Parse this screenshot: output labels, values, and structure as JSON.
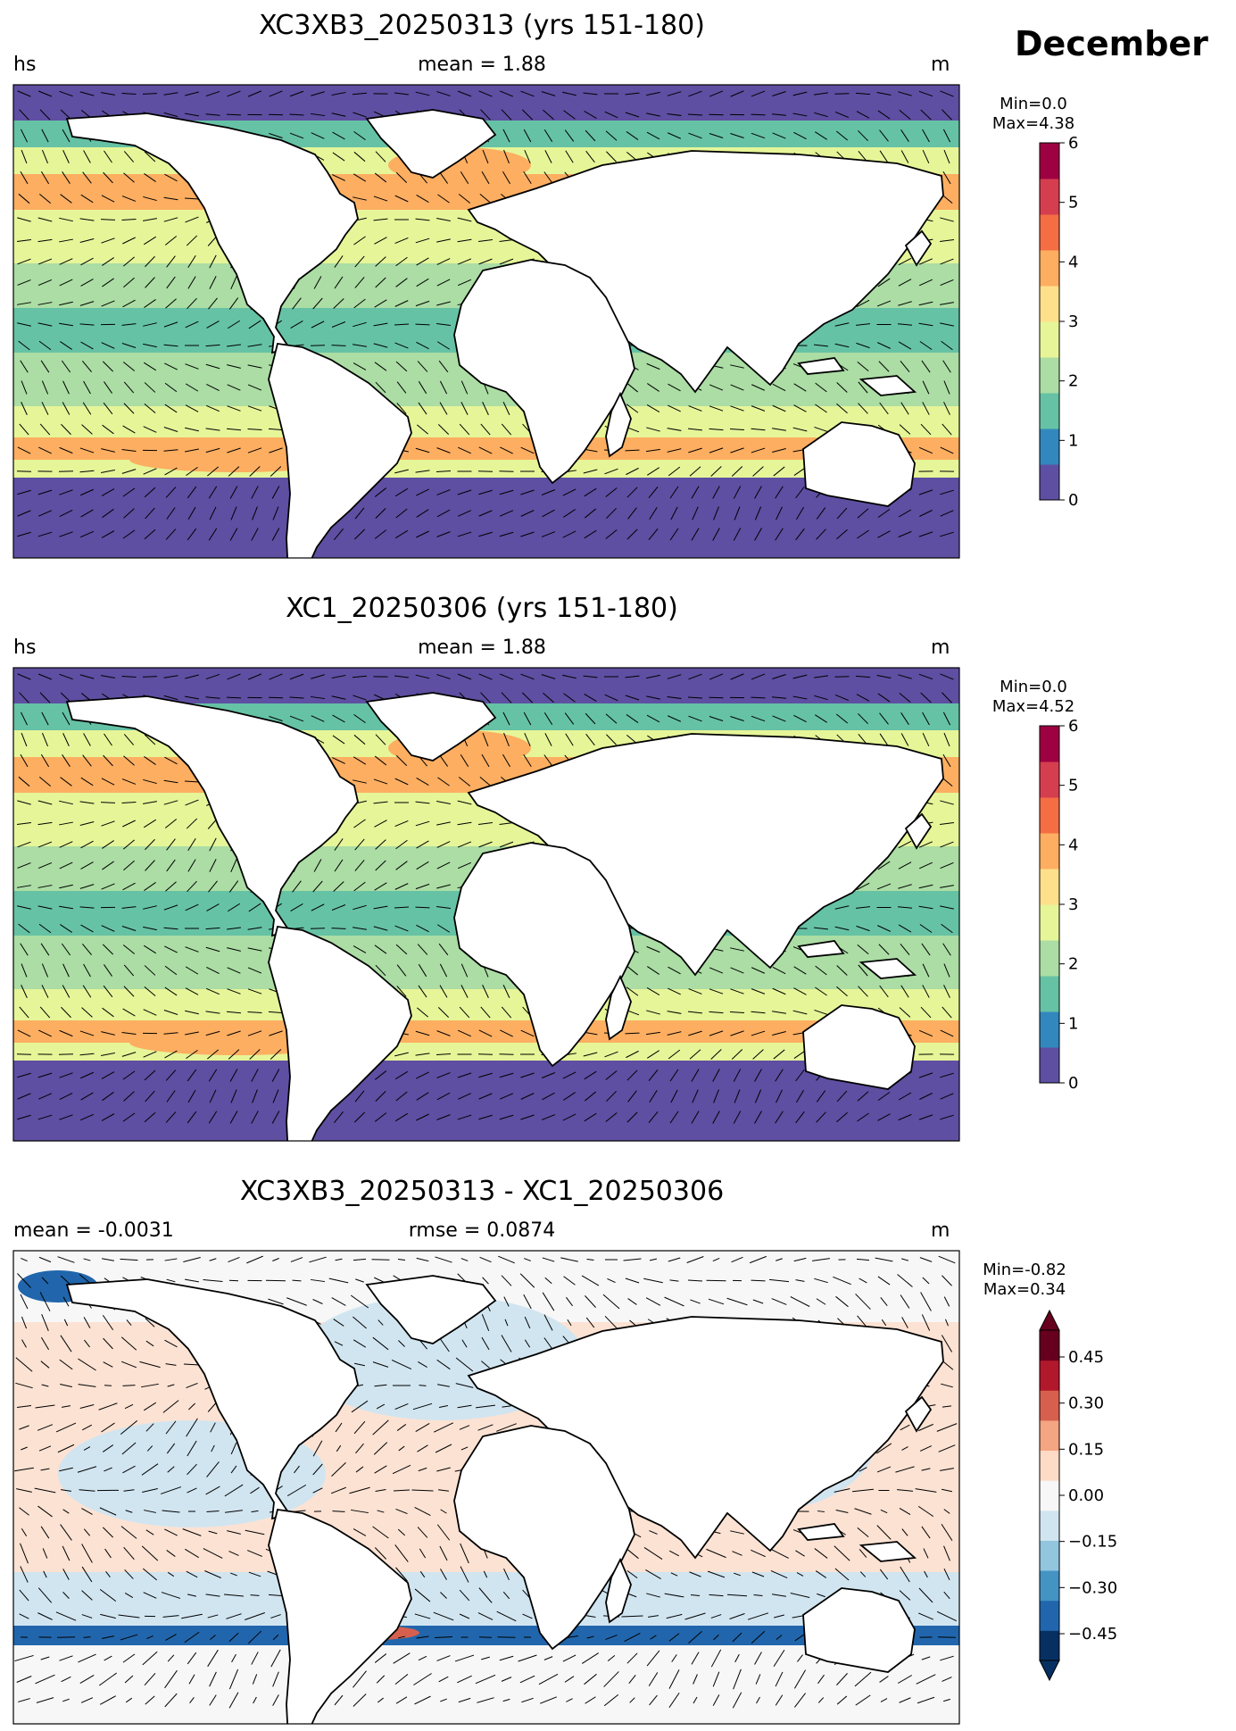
{
  "page": {
    "month": "December"
  },
  "panels": [
    {
      "title": "XC3XB3_20250313 (yrs 151-180)",
      "left_label": "hs",
      "center_label": "mean = 1.88",
      "right_label": "m",
      "colorbar": {
        "min_text": "Min=0.0",
        "max_text": "Max=4.38",
        "ticks": [
          "0",
          "1",
          "2",
          "3",
          "4",
          "5",
          "6"
        ],
        "colors": [
          "#5e4fa2",
          "#3288bd",
          "#66c2a5",
          "#abdda4",
          "#e6f598",
          "#fee08b",
          "#fdae61",
          "#f46d43",
          "#d53e4f",
          "#9e0142"
        ]
      }
    },
    {
      "title": "XC1_20250306 (yrs 151-180)",
      "left_label": "hs",
      "center_label": "mean = 1.88",
      "right_label": "m",
      "colorbar": {
        "min_text": "Min=0.0",
        "max_text": "Max=4.52",
        "ticks": [
          "0",
          "1",
          "2",
          "3",
          "4",
          "5",
          "6"
        ],
        "colors": [
          "#5e4fa2",
          "#3288bd",
          "#66c2a5",
          "#abdda4",
          "#e6f598",
          "#fee08b",
          "#fdae61",
          "#f46d43",
          "#d53e4f",
          "#9e0142"
        ]
      }
    },
    {
      "title": "XC3XB3_20250313 - XC1_20250306",
      "left_label": "mean = -0.0031",
      "center_label": "rmse = 0.0874",
      "right_label": "m",
      "colorbar": {
        "min_text": "Min=-0.82",
        "max_text": "Max=0.34",
        "ticks": [
          "0.45",
          "0.30",
          "0.15",
          "0.00",
          "−0.15",
          "−0.30",
          "−0.45"
        ],
        "colors": [
          "#053061",
          "#2166ac",
          "#4393c3",
          "#92c5de",
          "#d1e5f0",
          "#f7f7f7",
          "#fddbc7",
          "#f4a582",
          "#d6604d",
          "#b2182b",
          "#67001f"
        ]
      }
    }
  ],
  "map_colors": {
    "land": "#ffffff",
    "coast": "#000000",
    "hs_polar": "#5e4fa2",
    "hs_coastal": "#3288bd",
    "hs_low": "#66c2a5",
    "hs_mid": "#abdda4",
    "hs_high": "#e6f598",
    "hs_peak": "#fdae61",
    "diff_base": "#f7f7f7",
    "diff_pos": "#fddbc7",
    "diff_neg": "#d1e5f0",
    "diff_strong_neg": "#2166ac",
    "diff_strong_pos": "#d6604d"
  }
}
